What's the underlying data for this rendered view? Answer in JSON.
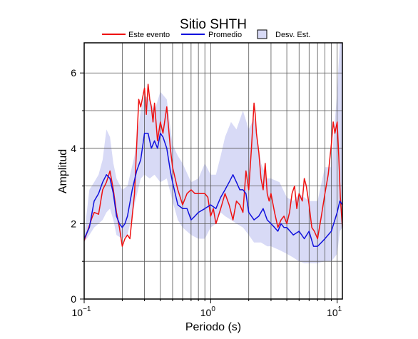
{
  "chart_data": {
    "type": "line",
    "title": "Sitio SHTH",
    "xlabel": "Periodo (s)",
    "ylabel": "Amplitud",
    "x_scale": "log",
    "xlim": [
      0.1,
      11
    ],
    "ylim": [
      0,
      6.8
    ],
    "x_ticks": [
      {
        "value": 0.1,
        "base": "10",
        "exp": "−1"
      },
      {
        "value": 1,
        "base": "10",
        "exp": "0"
      },
      {
        "value": 10,
        "base": "10",
        "exp": "1"
      }
    ],
    "y_ticks": [
      0,
      2,
      4,
      6
    ],
    "grid": true,
    "legend": {
      "placement": "top",
      "entries": [
        {
          "label": "Este evento",
          "kind": "line",
          "color": "#ee1111"
        },
        {
          "label": "Promedio",
          "kind": "line",
          "color": "#1111dd"
        },
        {
          "label": "Desv. Est.",
          "kind": "patch",
          "color": "#d8daf6"
        }
      ]
    },
    "band": {
      "name": "Desv. Est.",
      "color": "#d8daf6",
      "x": [
        0.1,
        0.11,
        0.12,
        0.13,
        0.14,
        0.15,
        0.16,
        0.17,
        0.18,
        0.2,
        0.22,
        0.25,
        0.28,
        0.3,
        0.33,
        0.36,
        0.4,
        0.45,
        0.5,
        0.55,
        0.6,
        0.7,
        0.8,
        0.9,
        1.0,
        1.1,
        1.2,
        1.3,
        1.45,
        1.6,
        1.8,
        2.0,
        2.2,
        2.5,
        2.8,
        3.0,
        3.5,
        4.0,
        4.5,
        5.0,
        5.5,
        6.0,
        7.0,
        8.0,
        9.0,
        10.0,
        10.5,
        11.0
      ],
      "upper": [
        1.7,
        2.9,
        3.1,
        3.3,
        3.7,
        4.5,
        4.3,
        3.6,
        3.2,
        2.9,
        3.0,
        3.8,
        5.0,
        5.4,
        5.3,
        5.0,
        5.5,
        5.3,
        4.1,
        3.8,
        3.6,
        3.1,
        3.2,
        3.6,
        3.3,
        3.3,
        3.8,
        4.3,
        4.7,
        4.5,
        5.0,
        4.5,
        4.8,
        3.6,
        3.2,
        3.2,
        3.1,
        2.7,
        2.6,
        2.8,
        2.7,
        2.6,
        2.6,
        3.5,
        3.5,
        5.5,
        6.8,
        6.8
      ],
      "lower": [
        1.5,
        1.7,
        1.9,
        2.0,
        2.1,
        2.3,
        2.4,
        2.1,
        1.7,
        1.6,
        1.7,
        2.5,
        3.2,
        3.3,
        3.2,
        3.3,
        3.1,
        3.2,
        2.6,
        2.1,
        1.9,
        1.7,
        1.6,
        1.6,
        1.9,
        2.0,
        2.3,
        2.2,
        2.1,
        2.0,
        1.9,
        1.7,
        1.5,
        1.5,
        1.4,
        1.4,
        1.3,
        1.2,
        1.1,
        1.0,
        0.95,
        0.95,
        0.95,
        1.0,
        1.0,
        1.2,
        1.8,
        1.9
      ]
    },
    "series": [
      {
        "name": "Este evento",
        "color": "#ee1111",
        "x": [
          0.1,
          0.105,
          0.11,
          0.115,
          0.12,
          0.13,
          0.14,
          0.15,
          0.16,
          0.17,
          0.18,
          0.19,
          0.2,
          0.21,
          0.22,
          0.23,
          0.25,
          0.27,
          0.28,
          0.3,
          0.31,
          0.32,
          0.33,
          0.34,
          0.35,
          0.36,
          0.38,
          0.4,
          0.42,
          0.45,
          0.48,
          0.5,
          0.55,
          0.6,
          0.65,
          0.7,
          0.75,
          0.8,
          0.85,
          0.9,
          0.95,
          1.0,
          1.05,
          1.1,
          1.15,
          1.2,
          1.3,
          1.4,
          1.5,
          1.6,
          1.7,
          1.8,
          1.9,
          2.0,
          2.1,
          2.2,
          2.25,
          2.3,
          2.4,
          2.5,
          2.6,
          2.7,
          2.8,
          2.9,
          3.0,
          3.2,
          3.4,
          3.6,
          3.8,
          4.0,
          4.2,
          4.4,
          4.6,
          4.8,
          5.0,
          5.3,
          5.5,
          5.7,
          6.0,
          6.3,
          6.6,
          7.0,
          7.5,
          8.0,
          8.5,
          9.0,
          9.3,
          9.6,
          10.0,
          10.3,
          10.6,
          11.0
        ],
        "y": [
          1.55,
          1.75,
          1.95,
          2.15,
          2.3,
          2.25,
          2.9,
          3.1,
          3.4,
          2.9,
          2.3,
          1.9,
          1.4,
          1.6,
          1.7,
          1.6,
          2.8,
          5.3,
          5.1,
          5.6,
          4.9,
          5.7,
          5.3,
          5.1,
          4.7,
          5.2,
          4.2,
          4.7,
          4.4,
          5.1,
          4.0,
          3.5,
          2.9,
          2.5,
          2.8,
          2.9,
          2.8,
          2.8,
          2.8,
          2.8,
          2.7,
          2.2,
          2.4,
          2.0,
          2.2,
          2.4,
          2.8,
          2.5,
          2.1,
          2.6,
          2.5,
          2.3,
          3.4,
          2.9,
          4.0,
          5.2,
          4.9,
          4.4,
          3.9,
          3.2,
          2.9,
          3.6,
          2.8,
          2.6,
          2.8,
          2.3,
          1.9,
          2.1,
          2.2,
          2.0,
          2.3,
          2.8,
          3.0,
          2.4,
          2.8,
          2.6,
          3.2,
          3.0,
          2.5,
          1.9,
          1.8,
          1.6,
          2.2,
          2.8,
          3.3,
          4.1,
          4.7,
          4.4,
          4.7,
          3.8,
          2.7,
          1.9
        ]
      },
      {
        "name": "Promedio",
        "color": "#1111dd",
        "x": [
          0.1,
          0.11,
          0.12,
          0.13,
          0.14,
          0.15,
          0.16,
          0.17,
          0.18,
          0.19,
          0.2,
          0.21,
          0.22,
          0.24,
          0.26,
          0.28,
          0.3,
          0.32,
          0.34,
          0.36,
          0.38,
          0.4,
          0.42,
          0.45,
          0.48,
          0.5,
          0.55,
          0.6,
          0.65,
          0.7,
          0.75,
          0.8,
          0.9,
          1.0,
          1.1,
          1.2,
          1.3,
          1.4,
          1.5,
          1.6,
          1.7,
          1.8,
          1.9,
          2.0,
          2.2,
          2.4,
          2.6,
          2.8,
          3.0,
          3.2,
          3.4,
          3.6,
          3.8,
          4.0,
          4.5,
          5.0,
          5.5,
          6.0,
          6.5,
          7.0,
          7.5,
          8.0,
          9.0,
          10.0,
          10.5,
          11.0
        ],
        "y": [
          1.6,
          1.9,
          2.6,
          2.8,
          3.1,
          3.3,
          3.2,
          2.8,
          2.2,
          2.0,
          1.9,
          2.0,
          2.2,
          2.9,
          3.4,
          3.7,
          4.4,
          4.4,
          4.0,
          4.2,
          4.0,
          4.4,
          4.3,
          4.0,
          3.4,
          3.1,
          2.5,
          2.4,
          2.4,
          2.1,
          2.2,
          2.3,
          2.4,
          2.5,
          2.4,
          2.7,
          2.9,
          3.1,
          3.3,
          3.1,
          2.9,
          2.9,
          2.8,
          2.3,
          2.1,
          2.2,
          2.4,
          2.1,
          2.0,
          1.9,
          1.8,
          2.0,
          1.9,
          1.9,
          1.7,
          1.8,
          1.6,
          1.8,
          1.4,
          1.4,
          1.5,
          1.6,
          1.8,
          2.3,
          2.6,
          2.5
        ]
      }
    ]
  }
}
